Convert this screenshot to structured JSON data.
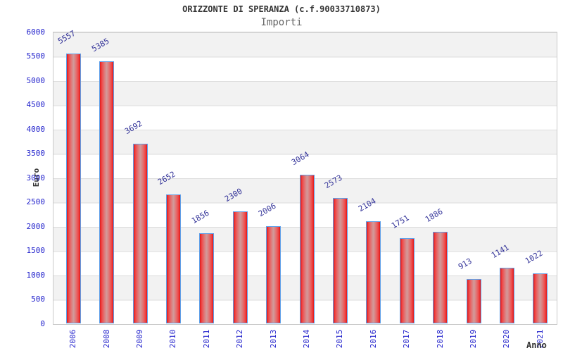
{
  "header": {
    "title": "ORIZZONTE DI SPERANZA (c.f.90033710873)",
    "subtitle": "Importi"
  },
  "chart_data": {
    "type": "bar",
    "title": "ORIZZONTE DI SPERANZA (c.f.90033710873)",
    "subtitle": "Importi",
    "xlabel": "Anno",
    "ylabel": "Euro",
    "categories": [
      "2006",
      "2008",
      "2009",
      "2010",
      "2011",
      "2012",
      "2013",
      "2014",
      "2015",
      "2016",
      "2017",
      "2018",
      "2019",
      "2020",
      "2021"
    ],
    "values": [
      5557,
      5385,
      3692,
      2652,
      1856,
      2300,
      2006,
      3064,
      2573,
      2104,
      1751,
      1886,
      913,
      1141,
      1022
    ],
    "ylim": [
      0,
      6000
    ],
    "ytick_step": 500,
    "grid": "horizontal-bands",
    "legend": "none",
    "colors": {
      "bar_fill_edge": "#e01818",
      "bar_fill_center": "#d29b9b",
      "bar_border": "#5f9fe8",
      "tick_label": "#2222cc",
      "value_label": "#333399",
      "band_gray": "#f2f2f2",
      "band_white": "#ffffff",
      "gridline": "#dcdcdc",
      "title_text": "#333333",
      "subtitle_text": "#666666"
    }
  }
}
